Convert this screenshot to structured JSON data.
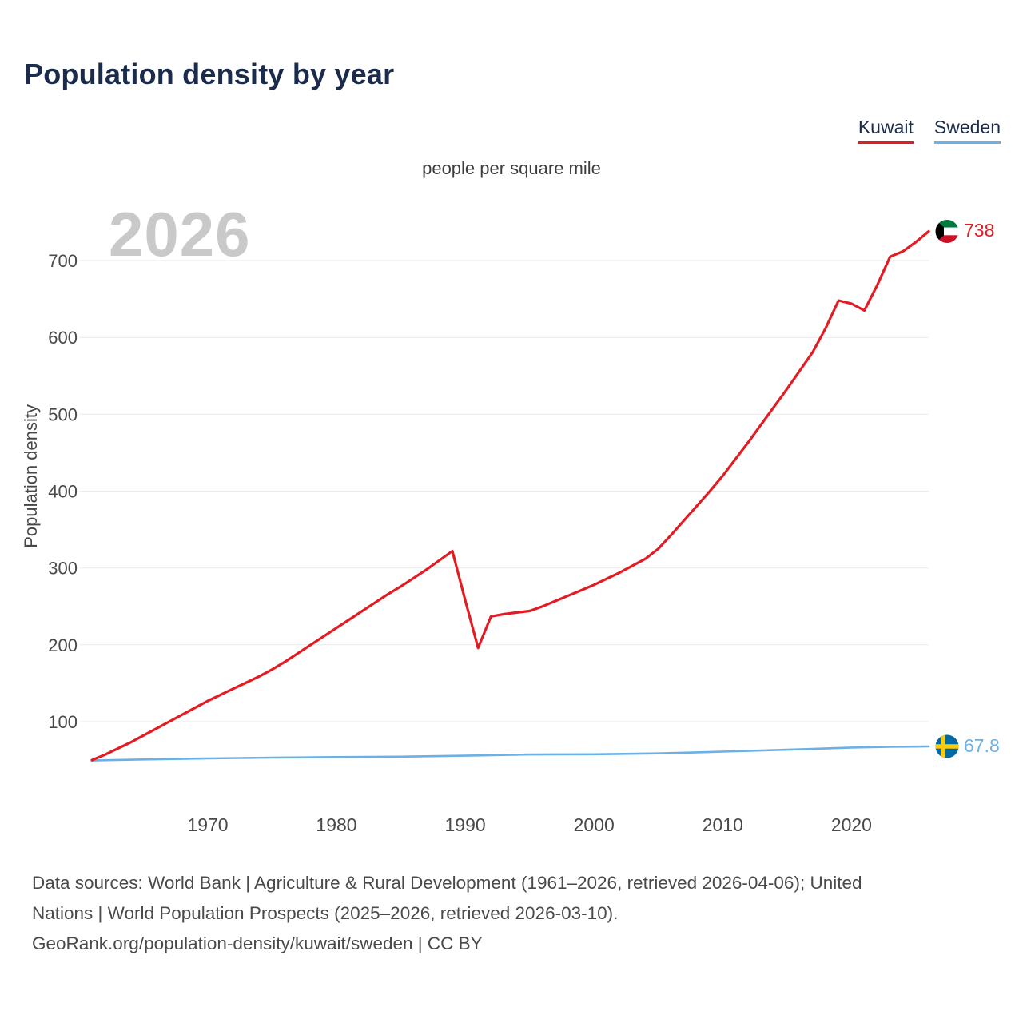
{
  "header": {
    "title": "Population density by year",
    "subtitle": "people per square mile"
  },
  "watermark": "2026",
  "chart_data": {
    "type": "line",
    "title": "Population density by year",
    "subtitle": "people per square mile",
    "xlabel": "",
    "ylabel": "Population density",
    "x_range": [
      1961,
      2026
    ],
    "x_ticks": [
      1970,
      1980,
      1990,
      2000,
      2010,
      2020
    ],
    "y_ticks": [
      100,
      200,
      300,
      400,
      500,
      600,
      700
    ],
    "grid": "horizontal",
    "legend_position": "top-right",
    "series": [
      {
        "name": "Kuwait",
        "color": "#e31b23",
        "end_label": "738",
        "flag": "kuwait",
        "points": [
          [
            1961,
            50
          ],
          [
            1962,
            57
          ],
          [
            1963,
            65
          ],
          [
            1964,
            73
          ],
          [
            1965,
            82
          ],
          [
            1966,
            91
          ],
          [
            1967,
            100
          ],
          [
            1968,
            109
          ],
          [
            1969,
            118
          ],
          [
            1970,
            127
          ],
          [
            1971,
            135
          ],
          [
            1972,
            143
          ],
          [
            1973,
            151
          ],
          [
            1974,
            159
          ],
          [
            1975,
            168
          ],
          [
            1976,
            178
          ],
          [
            1977,
            189
          ],
          [
            1978,
            200
          ],
          [
            1979,
            211
          ],
          [
            1980,
            222
          ],
          [
            1981,
            233
          ],
          [
            1982,
            244
          ],
          [
            1983,
            255
          ],
          [
            1984,
            266
          ],
          [
            1985,
            276
          ],
          [
            1986,
            287
          ],
          [
            1987,
            298
          ],
          [
            1988,
            310
          ],
          [
            1989,
            322
          ],
          [
            1990,
            258
          ],
          [
            1991,
            196
          ],
          [
            1992,
            237
          ],
          [
            1993,
            240
          ],
          [
            1994,
            242
          ],
          [
            1995,
            244
          ],
          [
            1996,
            250
          ],
          [
            1997,
            257
          ],
          [
            1998,
            264
          ],
          [
            1999,
            271
          ],
          [
            2000,
            278
          ],
          [
            2001,
            286
          ],
          [
            2002,
            294
          ],
          [
            2003,
            303
          ],
          [
            2004,
            312
          ],
          [
            2005,
            325
          ],
          [
            2006,
            343
          ],
          [
            2007,
            362
          ],
          [
            2008,
            381
          ],
          [
            2009,
            400
          ],
          [
            2010,
            420
          ],
          [
            2011,
            442
          ],
          [
            2012,
            464
          ],
          [
            2013,
            487
          ],
          [
            2014,
            510
          ],
          [
            2015,
            533
          ],
          [
            2016,
            557
          ],
          [
            2017,
            581
          ],
          [
            2018,
            612
          ],
          [
            2019,
            648
          ],
          [
            2020,
            644
          ],
          [
            2021,
            635
          ],
          [
            2022,
            668
          ],
          [
            2023,
            705
          ],
          [
            2024,
            712
          ],
          [
            2025,
            724
          ],
          [
            2026,
            738
          ]
        ]
      },
      {
        "name": "Sweden",
        "color": "#6cb0e4",
        "end_label": "67.8",
        "flag": "sweden",
        "points": [
          [
            1961,
            49.5
          ],
          [
            1965,
            50.8
          ],
          [
            1970,
            52.2
          ],
          [
            1975,
            53.2
          ],
          [
            1980,
            53.9
          ],
          [
            1985,
            54.5
          ],
          [
            1990,
            55.7
          ],
          [
            1995,
            57.3
          ],
          [
            2000,
            57.6
          ],
          [
            2005,
            58.7
          ],
          [
            2010,
            61.0
          ],
          [
            2015,
            63.5
          ],
          [
            2020,
            66.3
          ],
          [
            2023,
            67.2
          ],
          [
            2026,
            67.8
          ]
        ]
      }
    ]
  },
  "footer": {
    "lines": [
      "Data sources: World Bank | Agriculture & Rural Development (1961–2026, retrieved 2026-04-06); United",
      "Nations | World Population Prospects (2025–2026, retrieved 2026-03-10).",
      "GeoRank.org/population-density/kuwait/sweden | CC BY"
    ]
  }
}
